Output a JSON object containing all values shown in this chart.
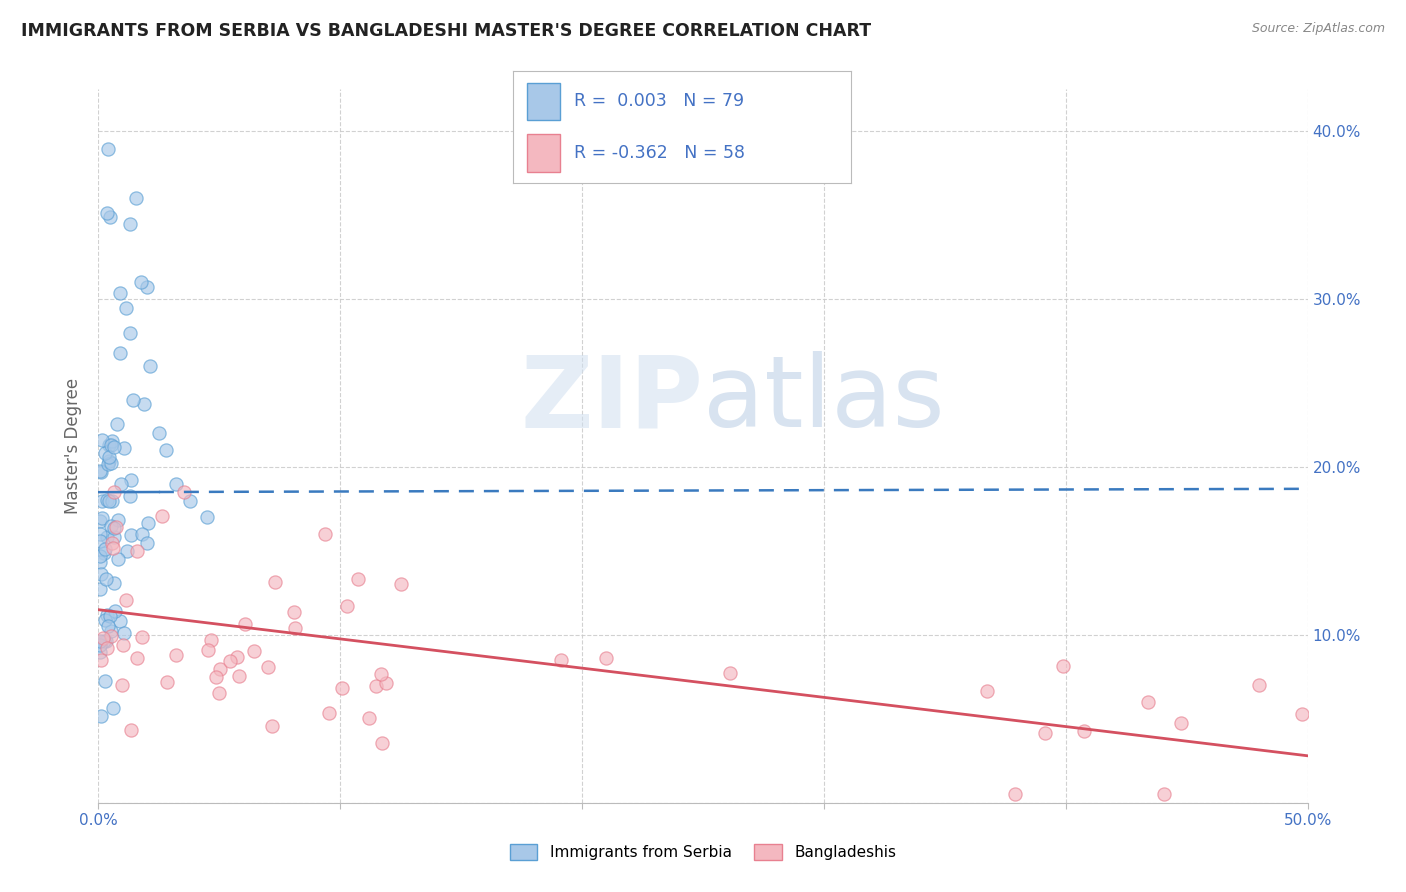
{
  "title": "IMMIGRANTS FROM SERBIA VS BANGLADESHI MASTER'S DEGREE CORRELATION CHART",
  "source": "Source: ZipAtlas.com",
  "ylabel": "Master's Degree",
  "legend_label_blue": "Immigrants from Serbia",
  "legend_label_pink": "Bangladeshis",
  "blue_scatter_color": "#a8c8e8",
  "blue_edge_color": "#5a9fd4",
  "pink_scatter_color": "#f4b8c0",
  "pink_edge_color": "#e88090",
  "trend_blue_color": "#3a7abf",
  "trend_pink_color": "#d45060",
  "grid_color": "#cccccc",
  "watermark_zip_color": "#c8d8ec",
  "watermark_atlas_color": "#b8c8e0",
  "xlim": [
    0.0,
    0.5
  ],
  "ylim": [
    0.0,
    0.425
  ],
  "yticks": [
    0.0,
    0.1,
    0.2,
    0.3,
    0.4
  ],
  "ytick_labels": [
    "",
    "10.0%",
    "20.0%",
    "30.0%",
    "40.0%"
  ],
  "xticks": [
    0.0,
    0.1,
    0.2,
    0.3,
    0.4,
    0.5
  ],
  "xtick_labels": [
    "0.0%",
    "",
    "",
    "",
    "",
    "50.0%"
  ],
  "blue_trend_y_start": 0.185,
  "blue_trend_y_end": 0.187,
  "blue_trend_solid_end": 0.025,
  "pink_trend_y_start": 0.115,
  "pink_trend_y_end": 0.028,
  "legend_R_blue": "R =  0.003",
  "legend_N_blue": "N = 79",
  "legend_R_pink": "R = -0.362",
  "legend_N_pink": "N = 58",
  "legend_text_color": "#4472c4",
  "title_color": "#222222",
  "source_color": "#888888",
  "axis_label_color": "#666666",
  "axis_tick_color": "#4472c4"
}
